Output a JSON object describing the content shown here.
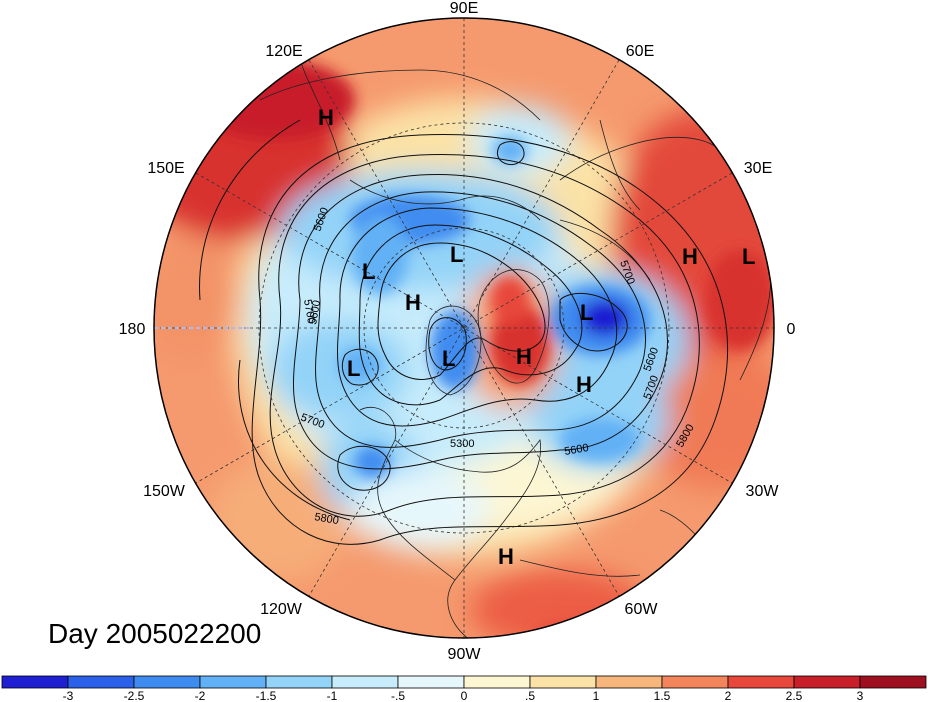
{
  "title": "Day 2005022200",
  "longitude_labels": {
    "top": "90E",
    "upper_left": "120E",
    "upper_right": "60E",
    "left_upper": "150E",
    "right_upper": "30E",
    "left": "180",
    "right": "0",
    "left_lower": "150W",
    "right_lower": "30W",
    "lower_left": "120W",
    "lower_right": "60W",
    "bottom": "90W"
  },
  "pressure_centers": [
    {
      "type": "H",
      "region": "northeast Asia"
    },
    {
      "type": "L",
      "region": "Siberia"
    },
    {
      "type": "L",
      "region": "East Siberian Sea"
    },
    {
      "type": "H",
      "region": "Arctic Ocean"
    },
    {
      "type": "L",
      "region": "Bering Sea"
    },
    {
      "type": "L",
      "region": "Canadian Arctic"
    },
    {
      "type": "H",
      "region": "Greenland"
    },
    {
      "type": "L",
      "region": "Norwegian Sea"
    },
    {
      "type": "H",
      "region": "North Atlantic"
    },
    {
      "type": "H",
      "region": "Europe"
    },
    {
      "type": "L",
      "region": "Europe"
    },
    {
      "type": "H",
      "region": "Caribbean"
    }
  ],
  "contour_labels": [
    "5600",
    "5700",
    "5700",
    "5600",
    "5700",
    "5600",
    "5300",
    "5600",
    "5700",
    "5800",
    "5800"
  ],
  "colorbar": {
    "ticks": [
      "-3",
      "-2.5",
      "-2",
      "-1.5",
      "-1",
      "-.5",
      "0",
      ".5",
      "1",
      "1.5",
      "2",
      "2.5",
      "3"
    ],
    "colors": [
      "#1e1ed2",
      "#2b60e8",
      "#3f8cf0",
      "#62b0f5",
      "#93d3f8",
      "#c7ecfb",
      "#e6f7fb",
      "#fdf6d3",
      "#fbe2a6",
      "#f7b67c",
      "#f2855b",
      "#e8473b",
      "#c81f2a",
      "#9e1020"
    ]
  },
  "colors": {
    "strong_low": "#2b60e8",
    "low": "#62b0f5",
    "weak_low": "#c7ecfb",
    "neutral": "#fdf6d3",
    "weak_high": "#f7b67c",
    "high": "#e8473b",
    "strong_high": "#c81f2a"
  }
}
